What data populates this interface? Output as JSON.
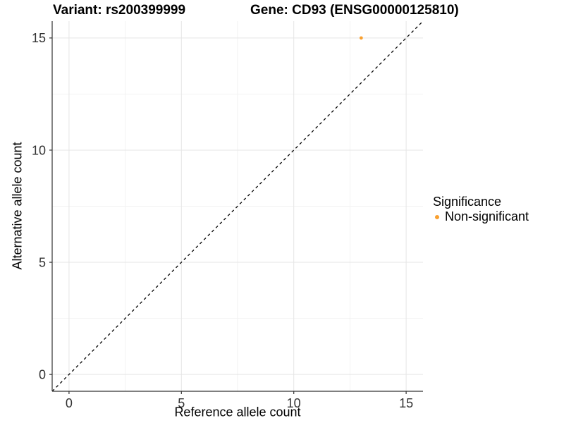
{
  "titles": {
    "left": "Variant: rs200399999",
    "right": "Gene: CD93 (ENSG00000125810)"
  },
  "legend": {
    "title": "Significance",
    "items": [
      {
        "label": "Non-significant",
        "color": "#F9A030"
      }
    ]
  },
  "colors": {
    "point": "#F9A030",
    "grid_major": "#E5E5E5",
    "grid_minor": "#F2F2F2",
    "axis_line": "#333333",
    "tick_text": "#333333",
    "reference_line": "#000000",
    "background": "#FFFFFF"
  },
  "chart_data": {
    "type": "scatter",
    "title": "Variant: rs200399999   Gene: CD93 (ENSG00000125810)",
    "xlabel": "Reference allele count",
    "ylabel": "Alternative allele count",
    "xlim": [
      -0.75,
      15.75
    ],
    "ylim": [
      -0.75,
      15.75
    ],
    "x_ticks": [
      0,
      5,
      10,
      15
    ],
    "y_ticks": [
      0,
      5,
      10,
      15
    ],
    "x_minor_ticks": [
      2.5,
      7.5,
      12.5
    ],
    "y_minor_ticks": [
      2.5,
      7.5,
      12.5
    ],
    "grid": true,
    "legend_position": "right",
    "series": [
      {
        "name": "Non-significant",
        "color": "#F9A030",
        "points": [
          {
            "x": 13,
            "y": 15
          }
        ]
      }
    ],
    "reference_line": {
      "kind": "identity",
      "slope": 1,
      "intercept": 0,
      "style": "dashed",
      "color": "#000000"
    }
  }
}
